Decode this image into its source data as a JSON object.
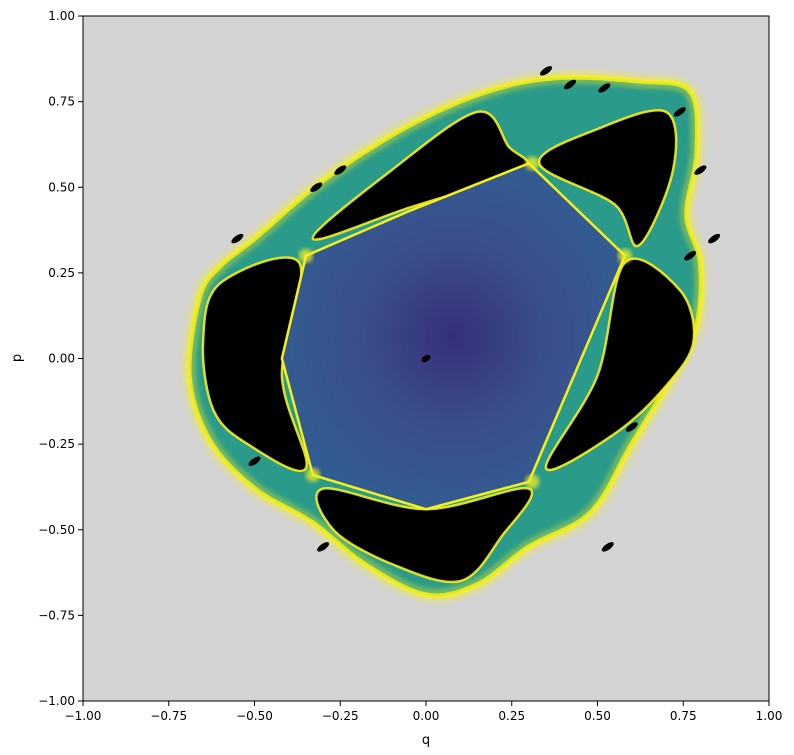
{
  "chart_data": {
    "type": "heatmap",
    "title": "",
    "xlabel": "q",
    "ylabel": "p",
    "xlim": [
      -1.0,
      1.0
    ],
    "ylim": [
      -1.0,
      1.0
    ],
    "xticks": [
      "−1.00",
      "−0.75",
      "−0.50",
      "−0.25",
      "0.00",
      "0.25",
      "0.50",
      "0.75",
      "1.00"
    ],
    "yticks": [
      "1.00",
      "0.75",
      "0.50",
      "0.25",
      "0.00",
      "−0.25",
      "−0.50",
      "−0.75",
      "−1.00"
    ],
    "xtick_values": [
      -1.0,
      -0.75,
      -0.5,
      -0.25,
      0.0,
      0.25,
      0.5,
      0.75,
      1.0
    ],
    "ytick_values": [
      1.0,
      0.75,
      0.5,
      0.25,
      0.0,
      -0.25,
      -0.5,
      -0.75,
      -1.0
    ],
    "grid": false,
    "legend": "none",
    "colors": {
      "background": "#d3d3d3",
      "island": "#000000",
      "center": "#3b4d88",
      "outer_region": "#2f5f8f",
      "separatrix": "#f5f01c",
      "chaos_teal": "#2a9a8a"
    },
    "regions": {
      "boundary_polygon": [
        [
          -0.66,
          0.18
        ],
        [
          -0.6,
          0.27
        ],
        [
          -0.5,
          0.35
        ],
        [
          -0.3,
          0.52
        ],
        [
          -0.05,
          0.68
        ],
        [
          0.18,
          0.78
        ],
        [
          0.38,
          0.82
        ],
        [
          0.62,
          0.81
        ],
        [
          0.77,
          0.78
        ],
        [
          0.79,
          0.6
        ],
        [
          0.76,
          0.42
        ],
        [
          0.8,
          0.28
        ],
        [
          0.79,
          0.1
        ],
        [
          0.72,
          -0.05
        ],
        [
          0.6,
          -0.25
        ],
        [
          0.48,
          -0.45
        ],
        [
          0.3,
          -0.55
        ],
        [
          0.15,
          -0.66
        ],
        [
          0.0,
          -0.69
        ],
        [
          -0.18,
          -0.6
        ],
        [
          -0.33,
          -0.48
        ],
        [
          -0.5,
          -0.38
        ],
        [
          -0.63,
          -0.24
        ],
        [
          -0.69,
          -0.05
        ]
      ],
      "central_region_vertices": [
        [
          -0.35,
          0.3
        ],
        [
          -0.05,
          0.43
        ],
        [
          0.3,
          0.57
        ],
        [
          0.58,
          0.3
        ],
        [
          0.3,
          -0.36
        ],
        [
          0.0,
          -0.44
        ],
        [
          -0.33,
          -0.34
        ],
        [
          -0.42,
          0.0
        ]
      ],
      "islands": [
        {
          "name": "upper-left",
          "points": [
            [
              -0.33,
              0.35
            ],
            [
              -0.1,
              0.55
            ],
            [
              0.15,
              0.72
            ],
            [
              0.24,
              0.62
            ],
            [
              0.28,
              0.55
            ],
            [
              -0.05,
              0.44
            ]
          ]
        },
        {
          "name": "upper-right",
          "points": [
            [
              0.33,
              0.57
            ],
            [
              0.5,
              0.67
            ],
            [
              0.7,
              0.72
            ],
            [
              0.72,
              0.55
            ],
            [
              0.62,
              0.33
            ],
            [
              0.55,
              0.45
            ]
          ]
        },
        {
          "name": "right",
          "points": [
            [
              0.58,
              0.28
            ],
            [
              0.74,
              0.2
            ],
            [
              0.78,
              0.05
            ],
            [
              0.7,
              -0.08
            ],
            [
              0.55,
              -0.22
            ],
            [
              0.35,
              -0.32
            ],
            [
              0.5,
              -0.05
            ]
          ]
        },
        {
          "name": "lower",
          "points": [
            [
              -0.3,
              -0.38
            ],
            [
              0.0,
              -0.44
            ],
            [
              0.3,
              -0.38
            ],
            [
              0.22,
              -0.52
            ],
            [
              0.1,
              -0.65
            ],
            [
              -0.1,
              -0.6
            ],
            [
              -0.27,
              -0.5
            ]
          ]
        },
        {
          "name": "left",
          "points": [
            [
              -0.37,
              0.28
            ],
            [
              -0.6,
              0.22
            ],
            [
              -0.65,
              0.05
            ],
            [
              -0.62,
              -0.15
            ],
            [
              -0.52,
              -0.25
            ],
            [
              -0.35,
              -0.32
            ],
            [
              -0.42,
              -0.05
            ]
          ]
        }
      ],
      "hyperbolic_points": [
        [
          -0.35,
          0.3
        ],
        [
          0.31,
          0.57
        ],
        [
          0.58,
          0.3
        ],
        [
          0.31,
          -0.36
        ],
        [
          -0.33,
          -0.34
        ]
      ],
      "satellite_islands": [
        [
          0.35,
          0.84
        ],
        [
          0.42,
          0.8
        ],
        [
          0.52,
          0.79
        ],
        [
          0.74,
          0.72
        ],
        [
          0.8,
          0.55
        ],
        [
          0.84,
          0.35
        ],
        [
          0.77,
          0.3
        ],
        [
          0.6,
          -0.2
        ],
        [
          0.53,
          -0.55
        ],
        [
          -0.3,
          -0.55
        ],
        [
          -0.5,
          -0.3
        ],
        [
          -0.55,
          0.35
        ],
        [
          -0.32,
          0.5
        ],
        [
          -0.25,
          0.55
        ]
      ],
      "center_point": [
        0.0,
        0.0
      ]
    }
  }
}
